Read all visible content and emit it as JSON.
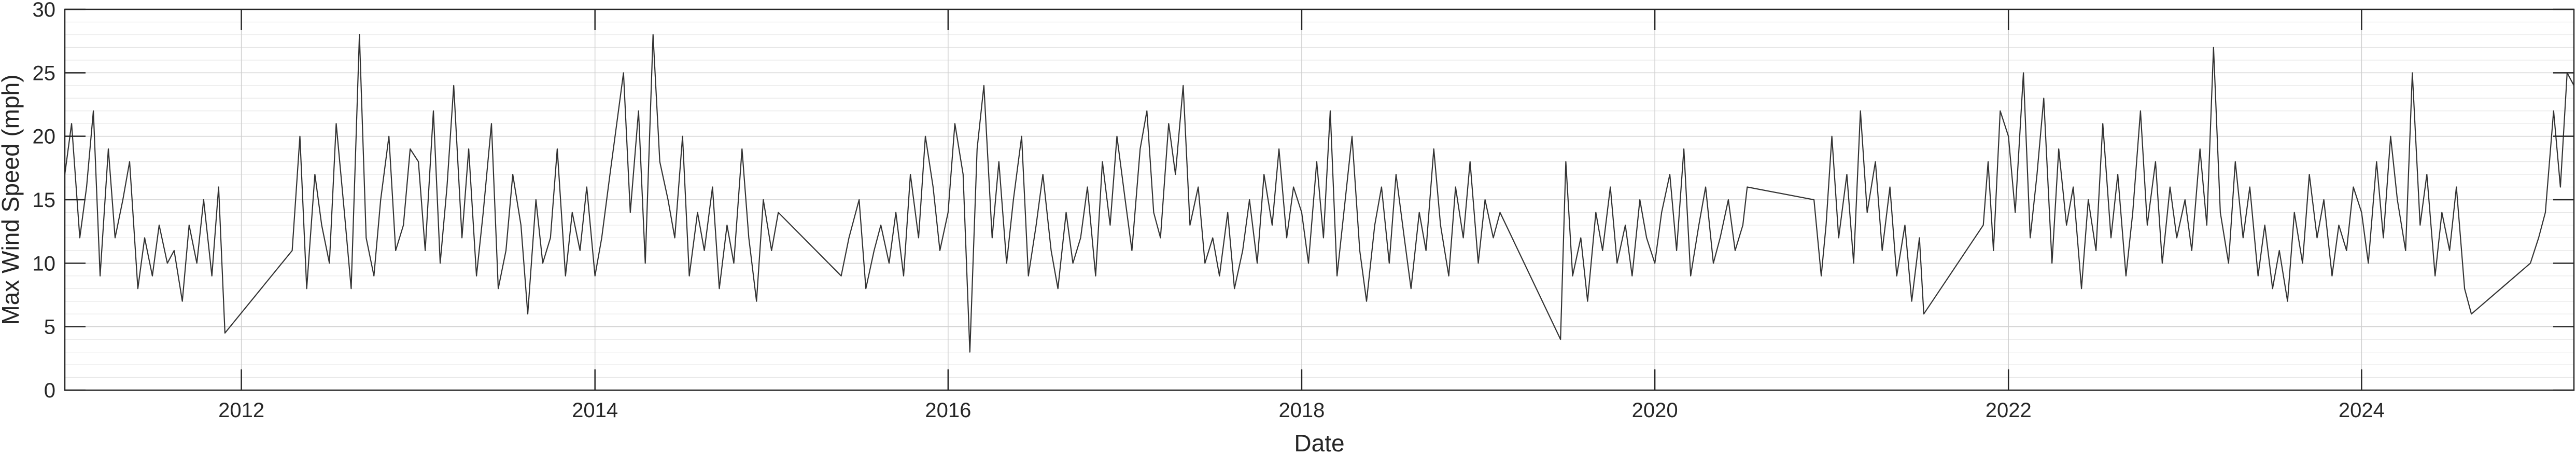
{
  "chart_data": {
    "type": "line",
    "xlabel": "Date",
    "ylabel": "Max Wind Speed (mph)",
    "title": "",
    "ylim": [
      0,
      30
    ],
    "xlim": [
      "2011-01-01",
      "2025-03-15"
    ],
    "grid": "major and minor",
    "line_color": "#333333",
    "x_ticks": [
      "2012",
      "2014",
      "2016",
      "2018",
      "2020",
      "2022",
      "2024"
    ],
    "y_ticks": [
      0,
      5,
      10,
      15,
      20,
      25,
      30
    ],
    "series": [
      {
        "x": [
          "2011-01-01",
          "2011-01-15",
          "2011-02-01",
          "2011-02-15",
          "2011-03-01",
          "2011-03-15",
          "2011-04-01",
          "2011-04-15",
          "2011-05-01",
          "2011-05-15",
          "2011-06-01",
          "2011-06-15",
          "2011-07-01",
          "2011-07-15",
          "2011-08-01",
          "2011-08-15",
          "2011-09-01",
          "2011-09-15",
          "2011-10-01",
          "2011-10-15",
          "2011-11-01",
          "2011-11-15",
          "2011-11-28",
          "2012-04-15",
          "2012-05-01",
          "2012-05-15",
          "2012-06-01",
          "2012-06-15",
          "2012-07-01",
          "2012-07-15",
          "2012-08-01",
          "2012-08-15",
          "2012-09-01",
          "2012-09-15",
          "2012-10-01",
          "2012-10-15",
          "2012-11-01",
          "2012-11-15",
          "2012-12-01",
          "2012-12-15",
          "2013-01-01",
          "2013-01-15",
          "2013-02-01",
          "2013-02-15",
          "2013-03-01",
          "2013-03-15",
          "2013-04-01",
          "2013-04-15",
          "2013-05-01",
          "2013-05-15",
          "2013-06-01",
          "2013-06-15",
          "2013-07-01",
          "2013-07-15",
          "2013-08-01",
          "2013-08-15",
          "2013-09-01",
          "2013-09-15",
          "2013-10-01",
          "2013-10-15",
          "2013-11-01",
          "2013-11-15",
          "2013-12-01",
          "2013-12-15",
          "2014-01-01",
          "2014-01-15",
          "2014-02-01",
          "2014-02-15",
          "2014-03-01",
          "2014-03-15",
          "2014-04-01",
          "2014-04-15",
          "2014-05-01",
          "2014-05-15",
          "2014-06-01",
          "2014-06-15",
          "2014-07-01",
          "2014-07-15",
          "2014-08-01",
          "2014-08-15",
          "2014-09-01",
          "2014-09-15",
          "2014-10-01",
          "2014-10-15",
          "2014-11-01",
          "2014-11-15",
          "2014-12-01",
          "2014-12-15",
          "2015-01-01",
          "2015-01-15",
          "2015-05-25",
          "2015-06-10",
          "2015-07-01",
          "2015-07-15",
          "2015-08-01",
          "2015-08-15",
          "2015-09-01",
          "2015-09-15",
          "2015-10-01",
          "2015-10-15",
          "2015-11-01",
          "2015-11-15",
          "2015-12-01",
          "2015-12-15",
          "2016-01-01",
          "2016-01-15",
          "2016-02-01",
          "2016-02-15",
          "2016-03-01",
          "2016-03-15",
          "2016-04-01",
          "2016-04-15",
          "2016-05-01",
          "2016-05-15",
          "2016-06-01",
          "2016-06-15",
          "2016-07-01",
          "2016-07-15",
          "2016-08-01",
          "2016-08-15",
          "2016-09-01",
          "2016-09-15",
          "2016-10-01",
          "2016-10-15",
          "2016-11-01",
          "2016-11-15",
          "2016-12-01",
          "2016-12-15",
          "2017-01-01",
          "2017-01-15",
          "2017-02-01",
          "2017-02-15",
          "2017-03-01",
          "2017-03-15",
          "2017-04-01",
          "2017-04-15",
          "2017-05-01",
          "2017-05-15",
          "2017-06-01",
          "2017-06-15",
          "2017-07-01",
          "2017-07-15",
          "2017-08-01",
          "2017-08-15",
          "2017-09-01",
          "2017-09-15",
          "2017-10-01",
          "2017-10-15",
          "2017-11-01",
          "2017-11-15",
          "2017-12-01",
          "2017-12-15",
          "2018-01-01",
          "2018-01-15",
          "2018-02-01",
          "2018-02-15",
          "2018-03-01",
          "2018-03-15",
          "2018-04-01",
          "2018-04-15",
          "2018-05-01",
          "2018-05-15",
          "2018-06-01",
          "2018-06-15",
          "2018-07-01",
          "2018-07-15",
          "2018-08-01",
          "2018-08-15",
          "2018-09-01",
          "2018-09-15",
          "2018-10-01",
          "2018-10-15",
          "2018-11-01",
          "2018-11-15",
          "2018-12-01",
          "2018-12-15",
          "2019-01-01",
          "2019-01-15",
          "2019-02-01",
          "2019-02-15",
          "2019-06-20",
          "2019-07-01",
          "2019-07-15",
          "2019-08-01",
          "2019-08-15",
          "2019-09-01",
          "2019-09-15",
          "2019-10-01",
          "2019-10-15",
          "2019-11-01",
          "2019-11-15",
          "2019-12-01",
          "2019-12-15",
          "2020-01-01",
          "2020-01-15",
          "2020-02-01",
          "2020-02-15",
          "2020-03-01",
          "2020-03-15",
          "2020-04-01",
          "2020-04-15",
          "2020-05-01",
          "2020-05-15",
          "2020-06-01",
          "2020-06-15",
          "2020-07-01",
          "2020-07-10",
          "2020-11-25",
          "2020-12-10",
          "2020-12-20",
          "2021-01-01",
          "2021-01-15",
          "2021-02-01",
          "2021-02-15",
          "2021-03-01",
          "2021-03-15",
          "2021-04-01",
          "2021-04-15",
          "2021-05-01",
          "2021-05-15",
          "2021-06-01",
          "2021-06-15",
          "2021-07-01",
          "2021-07-10",
          "2021-11-10",
          "2021-11-20",
          "2021-12-01",
          "2021-12-15",
          "2022-01-01",
          "2022-01-15",
          "2022-02-01",
          "2022-02-15",
          "2022-03-01",
          "2022-03-15",
          "2022-04-01",
          "2022-04-15",
          "2022-05-01",
          "2022-05-15",
          "2022-06-01",
          "2022-06-15",
          "2022-07-01",
          "2022-07-15",
          "2022-08-01",
          "2022-08-15",
          "2022-09-01",
          "2022-09-15",
          "2022-10-01",
          "2022-10-15",
          "2022-11-01",
          "2022-11-15",
          "2022-12-01",
          "2022-12-15",
          "2023-01-01",
          "2023-01-15",
          "2023-02-01",
          "2023-02-15",
          "2023-03-01",
          "2023-03-15",
          "2023-04-01",
          "2023-04-15",
          "2023-05-01",
          "2023-05-15",
          "2023-06-01",
          "2023-06-15",
          "2023-07-01",
          "2023-07-15",
          "2023-08-01",
          "2023-08-15",
          "2023-09-01",
          "2023-09-15",
          "2023-10-01",
          "2023-10-15",
          "2023-11-01",
          "2023-11-15",
          "2023-12-01",
          "2023-12-15",
          "2024-01-01",
          "2024-01-15",
          "2024-02-01",
          "2024-02-15",
          "2024-03-01",
          "2024-03-15",
          "2024-04-01",
          "2024-04-15",
          "2024-05-01",
          "2024-05-15",
          "2024-06-01",
          "2024-06-15",
          "2024-07-01",
          "2024-07-15",
          "2024-08-01",
          "2024-08-15",
          "2024-12-15",
          "2025-01-01",
          "2025-01-15",
          "2025-02-01",
          "2025-02-15",
          "2025-03-01",
          "2025-03-15"
        ],
        "y": [
          17,
          21,
          12,
          16,
          22,
          9,
          19,
          12,
          15,
          18,
          8,
          12,
          9,
          13,
          10,
          11,
          7,
          13,
          10,
          15,
          9,
          16,
          4.5,
          11,
          20,
          8,
          17,
          13,
          10,
          21,
          14,
          8,
          28,
          12,
          9,
          15,
          20,
          11,
          13,
          19,
          18,
          11,
          22,
          10,
          16,
          24,
          12,
          19,
          9,
          14,
          21,
          8,
          11,
          17,
          13,
          6,
          15,
          10,
          12,
          19,
          9,
          14,
          11,
          16,
          9,
          12,
          17,
          21,
          25,
          14,
          22,
          10,
          28,
          18,
          15,
          12,
          20,
          9,
          14,
          11,
          16,
          8,
          13,
          10,
          19,
          12,
          7,
          15,
          11,
          14,
          9,
          12,
          15,
          8,
          11,
          13,
          10,
          14,
          9,
          17,
          12,
          20,
          16,
          11,
          14,
          21,
          17,
          3,
          19,
          24,
          12,
          18,
          10,
          15,
          20,
          9,
          13,
          17,
          11,
          8,
          14,
          10,
          12,
          16,
          9,
          18,
          13,
          20,
          15,
          11,
          19,
          22,
          14,
          12,
          21,
          17,
          24,
          13,
          16,
          10,
          12,
          9,
          14,
          8,
          11,
          15,
          10,
          17,
          13,
          19,
          12,
          16,
          14,
          10,
          18,
          12,
          22,
          9,
          15,
          20,
          11,
          7,
          13,
          16,
          10,
          17,
          12,
          8,
          14,
          11,
          19,
          13,
          9,
          16,
          12,
          18,
          10,
          15,
          12,
          14,
          4,
          18,
          9,
          12,
          7,
          14,
          11,
          16,
          10,
          13,
          9,
          15,
          12,
          10,
          14,
          17,
          11,
          19,
          9,
          13,
          16,
          10,
          12,
          15,
          11,
          13,
          16,
          15,
          9,
          13,
          20,
          12,
          17,
          10,
          22,
          14,
          18,
          11,
          16,
          9,
          13,
          7,
          12,
          6,
          13,
          18,
          11,
          22,
          20,
          14,
          25,
          12,
          17,
          23,
          10,
          19,
          13,
          16,
          8,
          15,
          11,
          21,
          12,
          17,
          9,
          14,
          22,
          13,
          18,
          10,
          16,
          12,
          15,
          11,
          19,
          13,
          27,
          14,
          10,
          18,
          12,
          16,
          9,
          13,
          8,
          11,
          7,
          14,
          10,
          17,
          12,
          15,
          9,
          13,
          11,
          16,
          14,
          10,
          18,
          12,
          20,
          15,
          11,
          25,
          13,
          17,
          9,
          14,
          11,
          16,
          8,
          6,
          10,
          12,
          14,
          22,
          16,
          25,
          24
        ]
      }
    ]
  }
}
